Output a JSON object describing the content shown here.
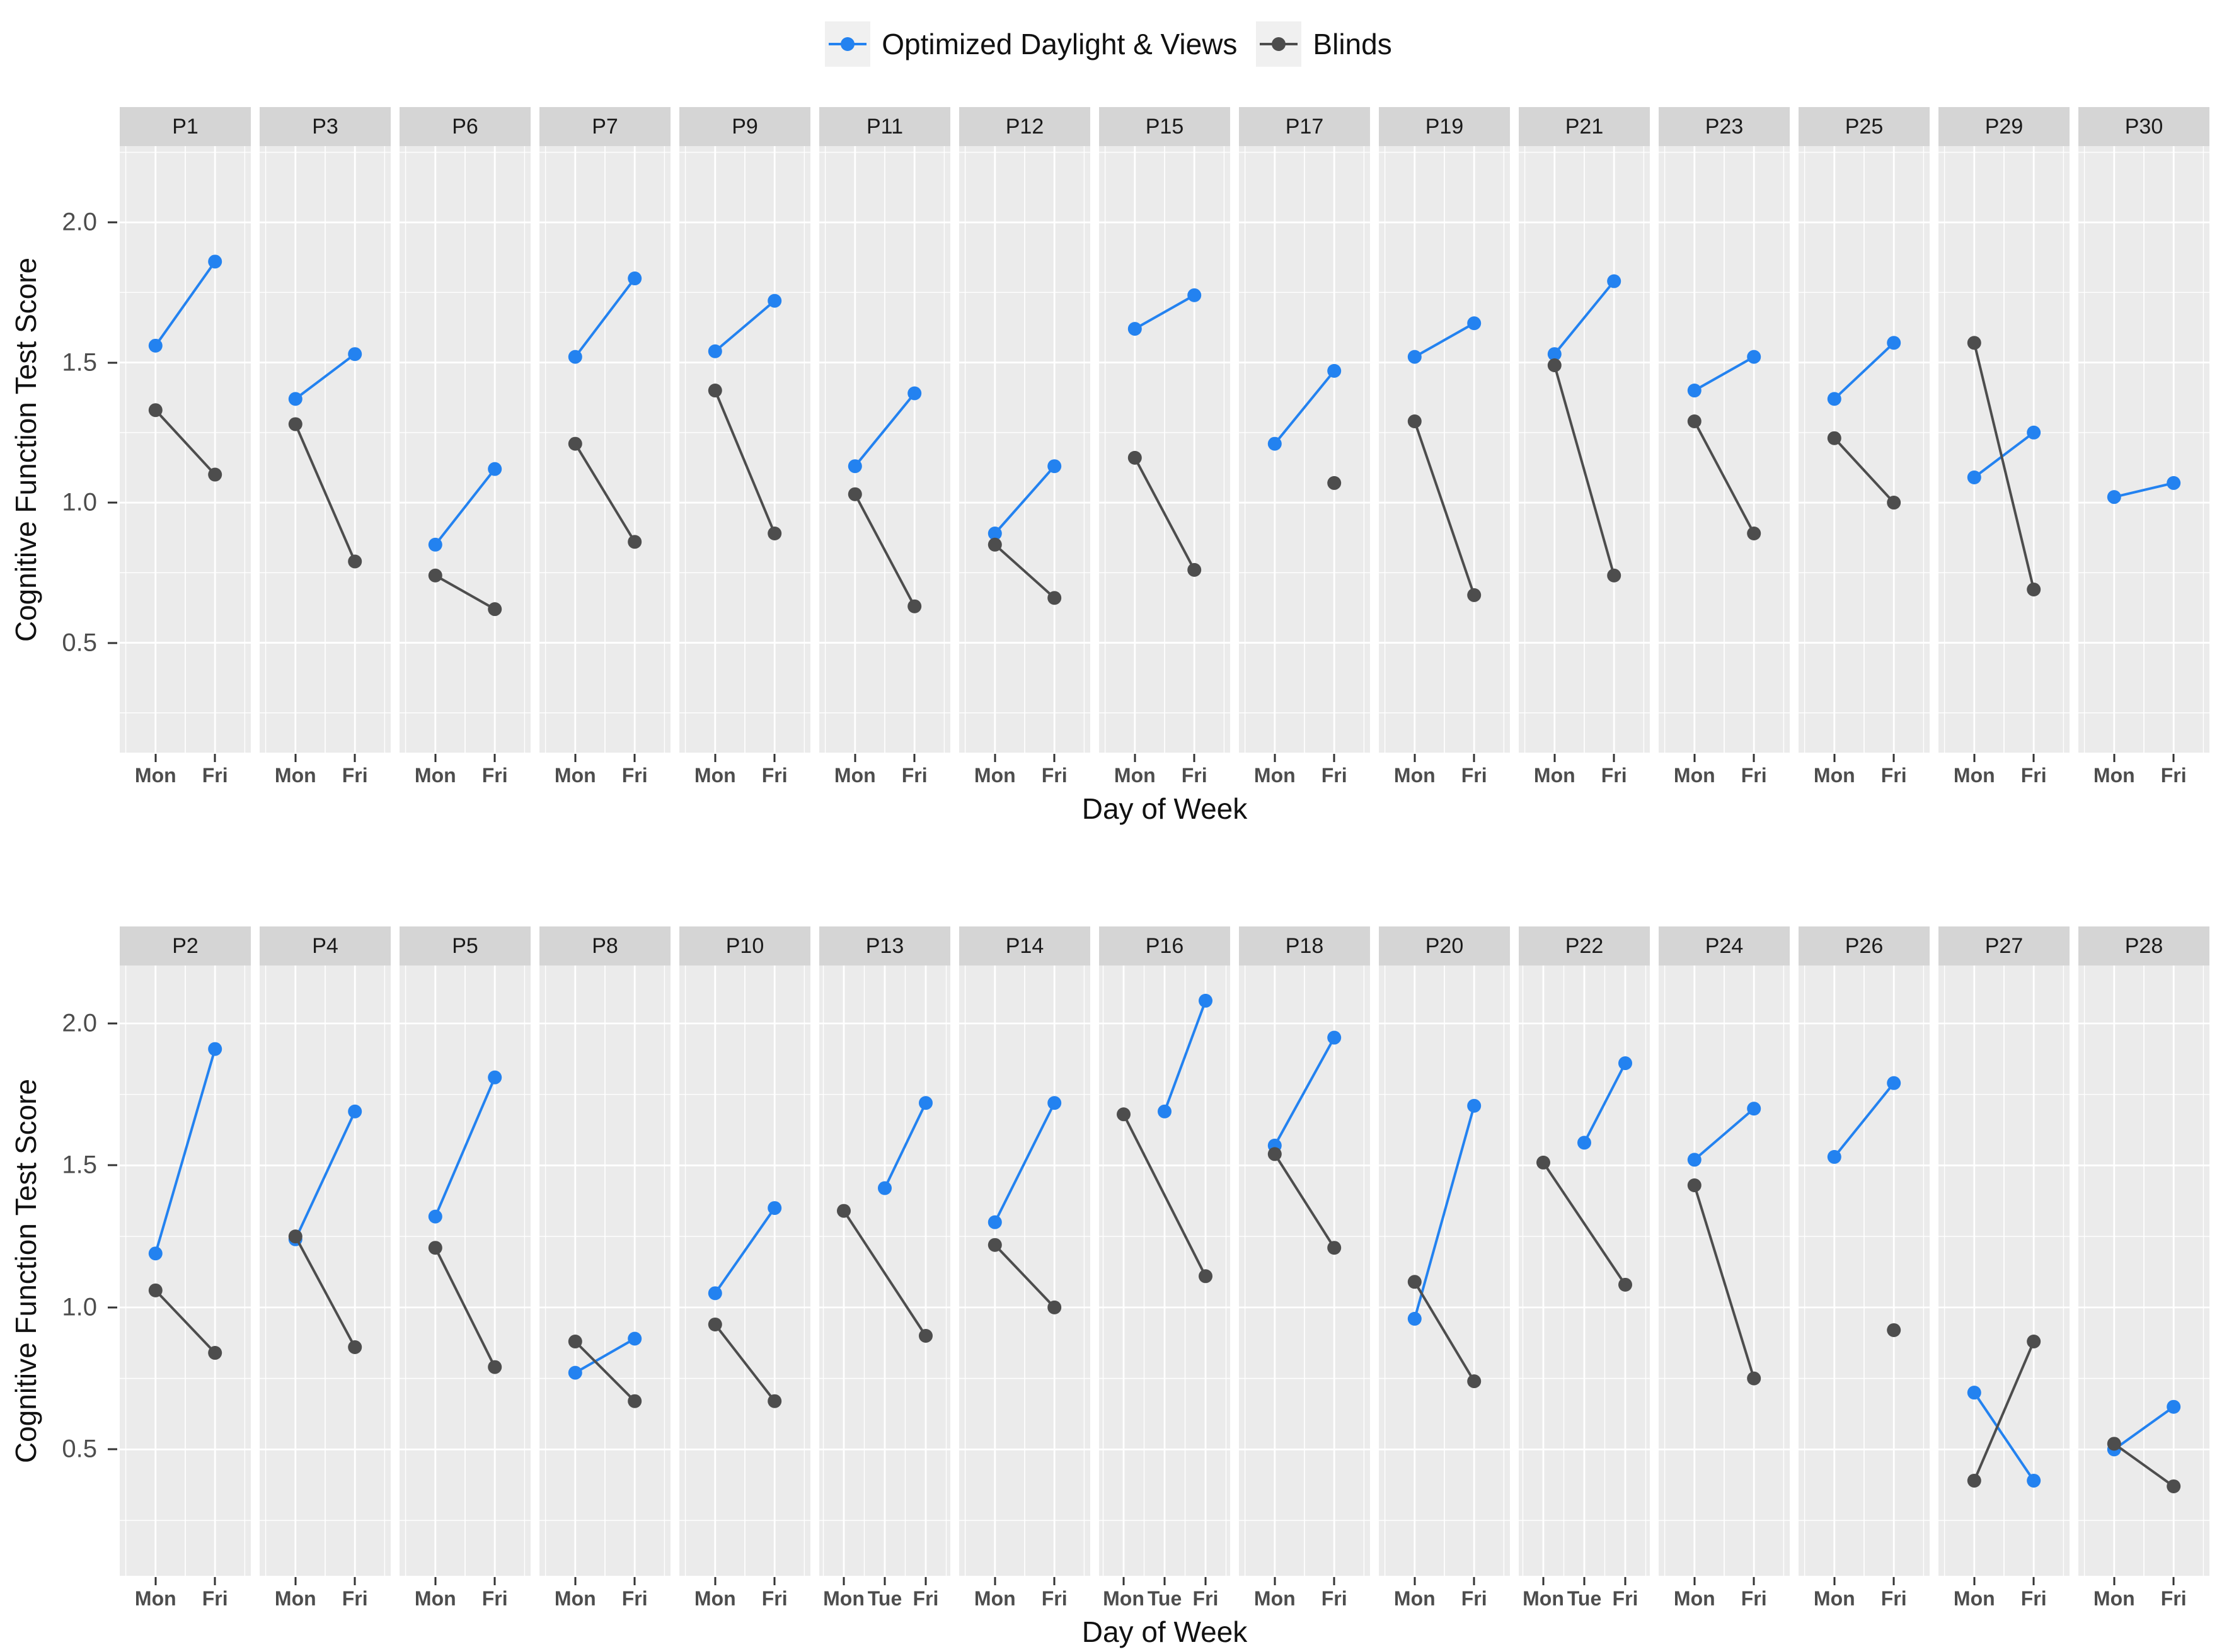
{
  "chart_data": {
    "type": "line",
    "title": "",
    "x_axis": {
      "label": "Day of Week",
      "default_categories": [
        "Mon",
        "Fri"
      ]
    },
    "y_axis": {
      "label": "Cognitive Function Test Score",
      "tick_labels": [
        "2.0",
        "1.5",
        "1.0",
        "0.5"
      ],
      "tick_values": [
        2.0,
        1.5,
        1.0,
        0.5
      ],
      "minor_grid_values": [
        2.25,
        1.75,
        1.25,
        0.75,
        0.25
      ],
      "grid": "on"
    },
    "legend_position": "top",
    "series": [
      {
        "name": "Optimized Daylight & Views",
        "color": "#2382F0"
      },
      {
        "name": "Blinds",
        "color": "#4D4D4D"
      }
    ],
    "rows": [
      {
        "facets": [
          {
            "label": "P1",
            "optimized": [
              {
                "day": "Mon",
                "score": 1.56
              },
              {
                "day": "Fri",
                "score": 1.86
              }
            ],
            "blinds": [
              {
                "day": "Mon",
                "score": 1.33
              },
              {
                "day": "Fri",
                "score": 1.1
              }
            ]
          },
          {
            "label": "P3",
            "optimized": [
              {
                "day": "Mon",
                "score": 1.37
              },
              {
                "day": "Fri",
                "score": 1.53
              }
            ],
            "blinds": [
              {
                "day": "Mon",
                "score": 1.28
              },
              {
                "day": "Fri",
                "score": 0.79
              }
            ]
          },
          {
            "label": "P6",
            "optimized": [
              {
                "day": "Mon",
                "score": 0.85
              },
              {
                "day": "Fri",
                "score": 1.12
              }
            ],
            "blinds": [
              {
                "day": "Mon",
                "score": 0.74
              },
              {
                "day": "Fri",
                "score": 0.62
              }
            ]
          },
          {
            "label": "P7",
            "optimized": [
              {
                "day": "Mon",
                "score": 1.52
              },
              {
                "day": "Fri",
                "score": 1.8
              }
            ],
            "blinds": [
              {
                "day": "Mon",
                "score": 1.21
              },
              {
                "day": "Fri",
                "score": 0.86
              }
            ]
          },
          {
            "label": "P9",
            "optimized": [
              {
                "day": "Mon",
                "score": 1.54
              },
              {
                "day": "Fri",
                "score": 1.72
              }
            ],
            "blinds": [
              {
                "day": "Mon",
                "score": 1.4
              },
              {
                "day": "Fri",
                "score": 0.89
              }
            ]
          },
          {
            "label": "P11",
            "optimized": [
              {
                "day": "Mon",
                "score": 1.13
              },
              {
                "day": "Fri",
                "score": 1.39
              }
            ],
            "blinds": [
              {
                "day": "Mon",
                "score": 1.03
              },
              {
                "day": "Fri",
                "score": 0.63
              }
            ]
          },
          {
            "label": "P12",
            "optimized": [
              {
                "day": "Mon",
                "score": 0.89
              },
              {
                "day": "Fri",
                "score": 1.13
              }
            ],
            "blinds": [
              {
                "day": "Mon",
                "score": 0.85
              },
              {
                "day": "Fri",
                "score": 0.66
              }
            ]
          },
          {
            "label": "P15",
            "optimized": [
              {
                "day": "Mon",
                "score": 1.62
              },
              {
                "day": "Fri",
                "score": 1.74
              }
            ],
            "blinds": [
              {
                "day": "Mon",
                "score": 1.16
              },
              {
                "day": "Fri",
                "score": 0.76
              }
            ]
          },
          {
            "label": "P17",
            "optimized": [
              {
                "day": "Mon",
                "score": 1.21
              },
              {
                "day": "Fri",
                "score": 1.47
              }
            ],
            "blinds": [
              {
                "day": "Fri",
                "score": 1.07
              }
            ]
          },
          {
            "label": "P19",
            "optimized": [
              {
                "day": "Mon",
                "score": 1.52
              },
              {
                "day": "Fri",
                "score": 1.64
              }
            ],
            "blinds": [
              {
                "day": "Mon",
                "score": 1.29
              },
              {
                "day": "Fri",
                "score": 0.67
              }
            ]
          },
          {
            "label": "P21",
            "optimized": [
              {
                "day": "Mon",
                "score": 1.53
              },
              {
                "day": "Fri",
                "score": 1.79
              }
            ],
            "blinds": [
              {
                "day": "Mon",
                "score": 1.49
              },
              {
                "day": "Fri",
                "score": 0.74
              }
            ]
          },
          {
            "label": "P23",
            "optimized": [
              {
                "day": "Mon",
                "score": 1.4
              },
              {
                "day": "Fri",
                "score": 1.52
              }
            ],
            "blinds": [
              {
                "day": "Mon",
                "score": 1.29
              },
              {
                "day": "Fri",
                "score": 0.89
              }
            ]
          },
          {
            "label": "P25",
            "optimized": [
              {
                "day": "Mon",
                "score": 1.37
              },
              {
                "day": "Fri",
                "score": 1.57
              }
            ],
            "blinds": [
              {
                "day": "Mon",
                "score": 1.23
              },
              {
                "day": "Fri",
                "score": 1.0
              }
            ]
          },
          {
            "label": "P29",
            "optimized": [
              {
                "day": "Mon",
                "score": 1.09
              },
              {
                "day": "Fri",
                "score": 1.25
              }
            ],
            "blinds": [
              {
                "day": "Mon",
                "score": 1.57
              },
              {
                "day": "Fri",
                "score": 0.69
              }
            ]
          },
          {
            "label": "P30",
            "optimized": [
              {
                "day": "Mon",
                "score": 1.02
              },
              {
                "day": "Fri",
                "score": 1.07
              }
            ],
            "blinds": []
          }
        ]
      },
      {
        "facets": [
          {
            "label": "P2",
            "optimized": [
              {
                "day": "Mon",
                "score": 1.19
              },
              {
                "day": "Fri",
                "score": 1.91
              }
            ],
            "blinds": [
              {
                "day": "Mon",
                "score": 1.06
              },
              {
                "day": "Fri",
                "score": 0.84
              }
            ]
          },
          {
            "label": "P4",
            "optimized": [
              {
                "day": "Mon",
                "score": 1.24
              },
              {
                "day": "Fri",
                "score": 1.69
              }
            ],
            "blinds": [
              {
                "day": "Mon",
                "score": 1.25
              },
              {
                "day": "Fri",
                "score": 0.86
              }
            ]
          },
          {
            "label": "P5",
            "optimized": [
              {
                "day": "Mon",
                "score": 1.32
              },
              {
                "day": "Fri",
                "score": 1.81
              }
            ],
            "blinds": [
              {
                "day": "Mon",
                "score": 1.21
              },
              {
                "day": "Fri",
                "score": 0.79
              }
            ]
          },
          {
            "label": "P8",
            "optimized": [
              {
                "day": "Mon",
                "score": 0.77
              },
              {
                "day": "Fri",
                "score": 0.89
              }
            ],
            "blinds": [
              {
                "day": "Mon",
                "score": 0.88
              },
              {
                "day": "Fri",
                "score": 0.67
              }
            ]
          },
          {
            "label": "P10",
            "optimized": [
              {
                "day": "Mon",
                "score": 1.05
              },
              {
                "day": "Fri",
                "score": 1.35
              }
            ],
            "blinds": [
              {
                "day": "Mon",
                "score": 0.94
              },
              {
                "day": "Fri",
                "score": 0.67
              }
            ]
          },
          {
            "label": "P13",
            "categories": [
              "Mon",
              "Tue",
              "Fri"
            ],
            "optimized": [
              {
                "day": "Tue",
                "score": 1.42
              },
              {
                "day": "Fri",
                "score": 1.72
              }
            ],
            "blinds": [
              {
                "day": "Mon",
                "score": 1.34
              },
              {
                "day": "Fri",
                "score": 0.9
              }
            ]
          },
          {
            "label": "P14",
            "optimized": [
              {
                "day": "Mon",
                "score": 1.3
              },
              {
                "day": "Fri",
                "score": 1.72
              }
            ],
            "blinds": [
              {
                "day": "Mon",
                "score": 1.22
              },
              {
                "day": "Fri",
                "score": 1.0
              }
            ]
          },
          {
            "label": "P16",
            "categories": [
              "Mon",
              "Tue",
              "Fri"
            ],
            "optimized": [
              {
                "day": "Tue",
                "score": 1.69
              },
              {
                "day": "Fri",
                "score": 2.08
              }
            ],
            "blinds": [
              {
                "day": "Mon",
                "score": 1.68
              },
              {
                "day": "Fri",
                "score": 1.11
              }
            ]
          },
          {
            "label": "P18",
            "optimized": [
              {
                "day": "Mon",
                "score": 1.57
              },
              {
                "day": "Fri",
                "score": 1.95
              }
            ],
            "blinds": [
              {
                "day": "Mon",
                "score": 1.54
              },
              {
                "day": "Fri",
                "score": 1.21
              }
            ]
          },
          {
            "label": "P20",
            "optimized": [
              {
                "day": "Mon",
                "score": 0.96
              },
              {
                "day": "Fri",
                "score": 1.71
              }
            ],
            "blinds": [
              {
                "day": "Mon",
                "score": 1.09
              },
              {
                "day": "Fri",
                "score": 0.74
              }
            ]
          },
          {
            "label": "P22",
            "categories": [
              "Mon",
              "Tue",
              "Fri"
            ],
            "optimized": [
              {
                "day": "Tue",
                "score": 1.58
              },
              {
                "day": "Fri",
                "score": 1.86
              }
            ],
            "blinds": [
              {
                "day": "Mon",
                "score": 1.51
              },
              {
                "day": "Fri",
                "score": 1.08
              }
            ]
          },
          {
            "label": "P24",
            "optimized": [
              {
                "day": "Mon",
                "score": 1.52
              },
              {
                "day": "Fri",
                "score": 1.7
              }
            ],
            "blinds": [
              {
                "day": "Mon",
                "score": 1.43
              },
              {
                "day": "Fri",
                "score": 0.75
              }
            ]
          },
          {
            "label": "P26",
            "optimized": [
              {
                "day": "Mon",
                "score": 1.53
              },
              {
                "day": "Fri",
                "score": 1.79
              }
            ],
            "blinds": [
              {
                "day": "Fri",
                "score": 0.92
              }
            ]
          },
          {
            "label": "P27",
            "optimized": [
              {
                "day": "Mon",
                "score": 0.7
              },
              {
                "day": "Fri",
                "score": 0.39
              }
            ],
            "blinds": [
              {
                "day": "Mon",
                "score": 0.39
              },
              {
                "day": "Fri",
                "score": 0.88
              }
            ]
          },
          {
            "label": "P28",
            "optimized": [
              {
                "day": "Mon",
                "score": 0.5
              },
              {
                "day": "Fri",
                "score": 0.65
              }
            ],
            "blinds": [
              {
                "day": "Mon",
                "score": 0.52
              },
              {
                "day": "Fri",
                "score": 0.37
              }
            ]
          }
        ]
      }
    ],
    "style_colors": {
      "panel_background": "#EBEBEB",
      "strip_background": "#D5D5D5",
      "grid_line": "#FFFFFF",
      "tick_text": "#4d4d4d",
      "legend_key_background": "#F0F0F0"
    }
  }
}
